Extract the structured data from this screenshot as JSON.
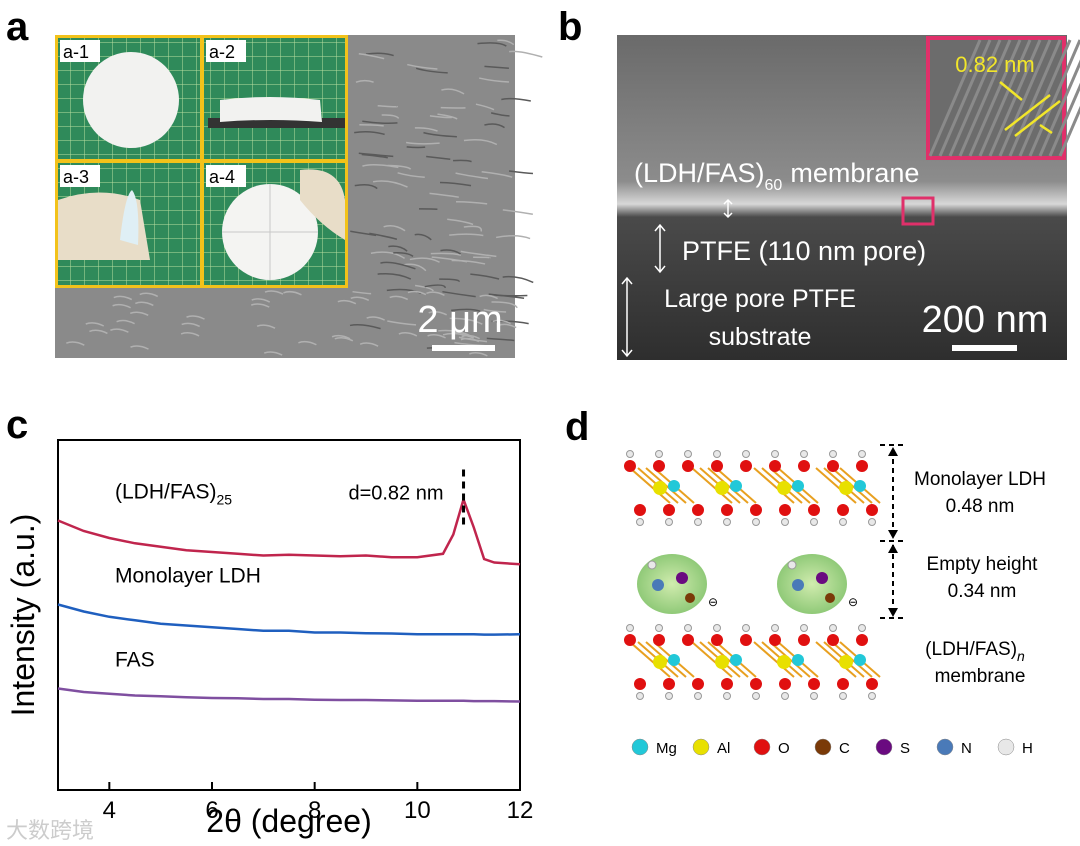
{
  "panels": {
    "a": {
      "letter": "a",
      "insets": [
        "a-1",
        "a-2",
        "a-3",
        "a-4"
      ],
      "scale_bar": "2 μm"
    },
    "b": {
      "letter": "b",
      "inset_scale": "0.82 nm",
      "membrane": "(LDH/FAS)",
      "membrane_subscript": "60",
      "membrane_suffix": "membrane",
      "layer_2": "PTFE (110 nm pore)",
      "layer_3_line_1": "Large pore PTFE",
      "layer_3_line_2": "substrate",
      "scale_bar": "200 nm"
    },
    "c": {
      "letter": "c"
    },
    "d": {
      "letter": "d",
      "label_1_line_1": "Monolayer LDH",
      "label_1_line_2": "0.48 nm",
      "label_2_line_1": "Empty height",
      "label_2_line_2": "0.34 nm",
      "label_3_line_1": "(LDH/FAS)",
      "label_3_subscript": "n",
      "label_3_line_2": "membrane",
      "elements": [
        {
          "symbol": "Mg",
          "color": "#22c8d8"
        },
        {
          "symbol": "Al",
          "color": "#e8e000"
        },
        {
          "symbol": "O",
          "color": "#e01010"
        },
        {
          "symbol": "C",
          "color": "#7a3a08"
        },
        {
          "symbol": "S",
          "color": "#6a0a80"
        },
        {
          "symbol": "N",
          "color": "#4a7ab8"
        },
        {
          "symbol": "H",
          "color": "#e8e8e8"
        }
      ]
    }
  },
  "chart_data": {
    "type": "line",
    "xlabel": "2θ (degree)",
    "ylabel": "Intensity (a.u.)",
    "annotation": "d=0.82 nm",
    "annotation_x": 10.9,
    "xlim": [
      3,
      12
    ],
    "xticks": [
      4,
      6,
      8,
      10,
      12
    ],
    "ylim": [
      0,
      10
    ],
    "x": [
      3,
      3.5,
      4,
      4.5,
      5,
      5.5,
      6,
      6.5,
      7,
      7.5,
      8,
      8.5,
      9,
      9.5,
      10,
      10.5,
      10.7,
      10.9,
      11.1,
      11.3,
      11.5,
      12
    ],
    "series": [
      {
        "name": "(LDH/FAS)",
        "name_subscript": "25",
        "color": "#c0254d",
        "values": [
          7.7,
          7.4,
          7.2,
          7.05,
          6.95,
          6.85,
          6.8,
          6.75,
          6.7,
          6.72,
          6.7,
          6.68,
          6.7,
          6.65,
          6.65,
          6.75,
          7.3,
          8.3,
          7.5,
          6.6,
          6.5,
          6.45
        ]
      },
      {
        "name": "Monolayer LDH",
        "color": "#1f5fbf",
        "values": [
          5.3,
          5.1,
          4.95,
          4.85,
          4.75,
          4.7,
          4.65,
          4.6,
          4.55,
          4.55,
          4.5,
          4.5,
          4.48,
          4.47,
          4.45,
          4.45,
          4.45,
          4.45,
          4.45,
          4.44,
          4.44,
          4.45
        ]
      },
      {
        "name": "FAS",
        "color": "#7f4fa0",
        "values": [
          2.9,
          2.8,
          2.75,
          2.7,
          2.68,
          2.65,
          2.63,
          2.62,
          2.6,
          2.6,
          2.58,
          2.57,
          2.57,
          2.56,
          2.55,
          2.55,
          2.55,
          2.55,
          2.54,
          2.54,
          2.54,
          2.53
        ]
      }
    ]
  },
  "watermark": "大数跨境"
}
